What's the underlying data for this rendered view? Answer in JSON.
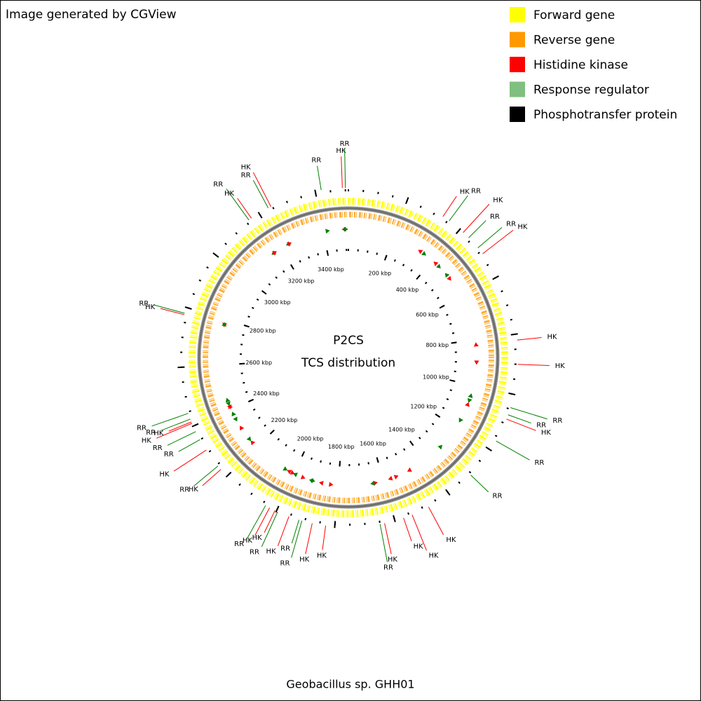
{
  "header": {
    "credit": "Image generated by CGView"
  },
  "legend": [
    {
      "label": "Forward gene",
      "color": "#ffff00"
    },
    {
      "label": "Reverse gene",
      "color": "#ff9900"
    },
    {
      "label": "Histidine kinase",
      "color": "#ff0000"
    },
    {
      "label": "Response regulator",
      "color": "#7fbf7f"
    },
    {
      "label": "Phosphotransfer protein",
      "color": "#000000"
    }
  ],
  "center": {
    "title": "P2CS",
    "subtitle": "TCS distribution"
  },
  "genome": {
    "name": "Geobacillus sp. GHH01",
    "range": [
      0,
      3510
    ],
    "ticks": [
      {
        "value": 200,
        "label": "200 kbp"
      },
      {
        "value": 400,
        "label": "400 kbp"
      },
      {
        "value": 600,
        "label": "600 kbp"
      },
      {
        "value": 800,
        "label": "800 kbp"
      },
      {
        "value": 1000,
        "label": "1000 kbp"
      },
      {
        "value": 1200,
        "label": "1200 kbp"
      },
      {
        "value": 1400,
        "label": "1400 kbp"
      },
      {
        "value": 1600,
        "label": "1600 kbp"
      },
      {
        "value": 1800,
        "label": "1800 kbp"
      },
      {
        "value": 2000,
        "label": "2000 kbp"
      },
      {
        "value": 2200,
        "label": "2200 kbp"
      },
      {
        "value": 2400,
        "label": "2400 kbp"
      },
      {
        "value": 2600,
        "label": "2600 kbp"
      },
      {
        "value": 2800,
        "label": "2800 kbp"
      },
      {
        "value": 3000,
        "label": "3000 kbp"
      },
      {
        "value": 3200,
        "label": "3200 kbp"
      },
      {
        "value": 3400,
        "label": "3400 kbp"
      }
    ]
  },
  "features": [
    {
      "label": "RR",
      "position": 3420,
      "color": "#008000"
    },
    {
      "label": "HK",
      "position": 3490,
      "color": "#ff0000"
    },
    {
      "label": "RR",
      "position": 3500,
      "color": "#008000"
    },
    {
      "label": "HK",
      "position": 330,
      "color": "#ff0000"
    },
    {
      "label": "RR",
      "position": 355,
      "color": "#008000"
    },
    {
      "label": "HK",
      "position": 415,
      "color": "#ff0000"
    },
    {
      "label": "RR",
      "position": 440,
      "color": "#008000"
    },
    {
      "label": "RR",
      "position": 485,
      "color": "#008000"
    },
    {
      "label": "HK",
      "position": 510,
      "color": "#ff0000"
    },
    {
      "label": "HK",
      "position": 820,
      "color": "#ff0000"
    },
    {
      "label": "HK",
      "position": 900,
      "color": "#ff0000"
    },
    {
      "label": "RR",
      "position": 1045,
      "color": "#008000"
    },
    {
      "label": "RR",
      "position": 1070,
      "color": "#008000"
    },
    {
      "label": "HK",
      "position": 1085,
      "color": "#ff0000"
    },
    {
      "label": "RR",
      "position": 1165,
      "color": "#008000"
    },
    {
      "label": "RR",
      "position": 1305,
      "color": "#008000"
    },
    {
      "label": "HK",
      "position": 1480,
      "color": "#ff0000"
    },
    {
      "label": "HK",
      "position": 1540,
      "color": "#ff0000"
    },
    {
      "label": "HK",
      "position": 1570,
      "color": "#ff0000"
    },
    {
      "label": "HK",
      "position": 1635,
      "color": "#ff0000"
    },
    {
      "label": "RR",
      "position": 1650,
      "color": "#008000"
    },
    {
      "label": "HK",
      "position": 1830,
      "color": "#ff0000"
    },
    {
      "label": "HK",
      "position": 1875,
      "color": "#ff0000"
    },
    {
      "label": "RR",
      "position": 1910,
      "color": "#008000"
    },
    {
      "label": "RR",
      "position": 1920,
      "color": "#008000"
    },
    {
      "label": "HK",
      "position": 1955,
      "color": "#ff0000"
    },
    {
      "label": "RR",
      "position": 1995,
      "color": "#008000"
    },
    {
      "label": "HK",
      "position": 2005,
      "color": "#ff0000"
    },
    {
      "label": "HK",
      "position": 2025,
      "color": "#ff0000"
    },
    {
      "label": "RR",
      "position": 2040,
      "color": "#008000"
    },
    {
      "label": "HK",
      "position": 2230,
      "color": "#ff0000"
    },
    {
      "label": "RR",
      "position": 2245,
      "color": "#008000"
    },
    {
      "label": "HK",
      "position": 2310,
      "color": "#ff0000"
    },
    {
      "label": "RR",
      "position": 2350,
      "color": "#008000"
    },
    {
      "label": "RR",
      "position": 2380,
      "color": "#008000"
    },
    {
      "label": "HK",
      "position": 2410,
      "color": "#ff0000"
    },
    {
      "label": "HK",
      "position": 2415,
      "color": "#ff0000"
    },
    {
      "label": "RR",
      "position": 2425,
      "color": "#008000"
    },
    {
      "label": "RR",
      "position": 2445,
      "color": "#008000"
    },
    {
      "label": "HK",
      "position": 2775,
      "color": "#ff0000"
    },
    {
      "label": "RR",
      "position": 2780,
      "color": "#008000"
    },
    {
      "label": "RR",
      "position": 3160,
      "color": "#008000"
    },
    {
      "label": "HK",
      "position": 3170,
      "color": "#ff0000"
    },
    {
      "label": "RR",
      "position": 3235,
      "color": "#008000"
    },
    {
      "label": "HK",
      "position": 3245,
      "color": "#ff0000"
    }
  ]
}
